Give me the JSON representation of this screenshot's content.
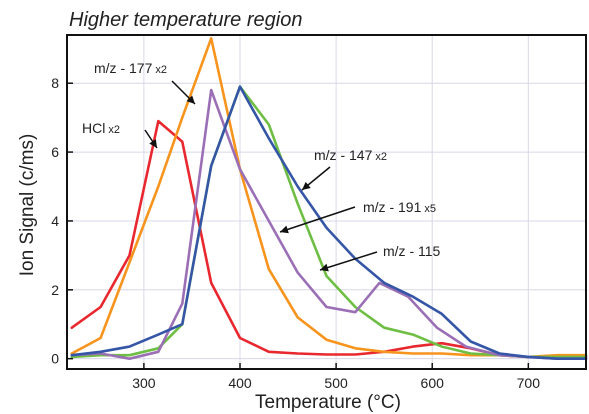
{
  "chart_data": {
    "type": "line",
    "title": "Higher temperature region",
    "xlabel": "Temperature (°C)",
    "ylabel": "Ion Signal (c/ms)",
    "xlim": [
      220,
      760
    ],
    "ylim": [
      -0.3,
      9.4
    ],
    "xticks": [
      300,
      400,
      500,
      600,
      700
    ],
    "yticks": [
      0,
      2,
      4,
      6,
      8
    ],
    "grid": true,
    "series": [
      {
        "name": "HCl",
        "color": "#e8282e",
        "x": [
          225,
          255,
          285,
          315,
          340,
          370,
          400,
          430,
          460,
          490,
          520,
          550,
          580,
          610,
          640,
          670,
          700,
          730,
          760
        ],
        "y": [
          0.9,
          1.5,
          3.0,
          6.9,
          6.3,
          2.2,
          0.6,
          0.2,
          0.15,
          0.12,
          0.12,
          0.2,
          0.35,
          0.45,
          0.3,
          0.1,
          0.05,
          0.05,
          0.05
        ]
      },
      {
        "name": "m/z - 177",
        "color": "#f7941d",
        "x": [
          225,
          255,
          285,
          315,
          340,
          370,
          400,
          430,
          460,
          490,
          520,
          550,
          580,
          610,
          640,
          670,
          700,
          730,
          760
        ],
        "y": [
          0.15,
          0.6,
          2.8,
          5.0,
          7.0,
          9.3,
          5.5,
          2.6,
          1.2,
          0.55,
          0.3,
          0.2,
          0.15,
          0.15,
          0.1,
          0.1,
          0.05,
          0.1,
          0.1
        ]
      },
      {
        "name": "m/z - 147",
        "color": "#6ebe44",
        "x": [
          225,
          255,
          285,
          315,
          340,
          370,
          400,
          430,
          460,
          490,
          520,
          550,
          580,
          610,
          640,
          670,
          700,
          730,
          760
        ],
        "y": [
          0.05,
          0.1,
          0.1,
          0.3,
          1.0,
          5.6,
          7.9,
          6.8,
          4.5,
          2.4,
          1.5,
          0.9,
          0.7,
          0.35,
          0.15,
          0.1,
          0.05,
          0.05,
          0.05
        ]
      },
      {
        "name": "m/z - 191",
        "color": "#9b6fb5",
        "x": [
          225,
          255,
          285,
          315,
          340,
          370,
          400,
          430,
          460,
          490,
          520,
          545,
          575,
          605,
          635,
          670,
          700,
          730,
          760
        ],
        "y": [
          0.1,
          0.15,
          0.0,
          0.2,
          1.6,
          7.8,
          5.5,
          4.0,
          2.5,
          1.5,
          1.35,
          2.2,
          1.8,
          0.9,
          0.35,
          0.1,
          0.05,
          0.0,
          0.0
        ]
      },
      {
        "name": "m/z - 115",
        "color": "#3556a6",
        "x": [
          225,
          255,
          285,
          315,
          340,
          370,
          400,
          430,
          460,
          490,
          520,
          550,
          580,
          610,
          640,
          670,
          700,
          730,
          760
        ],
        "y": [
          0.1,
          0.2,
          0.35,
          0.7,
          1.0,
          5.6,
          7.9,
          6.4,
          5.0,
          3.8,
          2.9,
          2.2,
          1.8,
          1.3,
          0.5,
          0.15,
          0.05,
          0.0,
          0.0
        ]
      }
    ],
    "annotations": [
      {
        "series": "m/z - 177",
        "label": "m/z - 177",
        "multiplier": "x2"
      },
      {
        "series": "HCl",
        "label": "HCl",
        "multiplier": "x2"
      },
      {
        "series": "m/z - 147",
        "label": "m/z - 147",
        "multiplier": "x2"
      },
      {
        "series": "m/z - 191",
        "label": "m/z - 191",
        "multiplier": "x5"
      },
      {
        "series": "m/z - 115",
        "label": "m/z - 115",
        "multiplier": ""
      }
    ]
  }
}
